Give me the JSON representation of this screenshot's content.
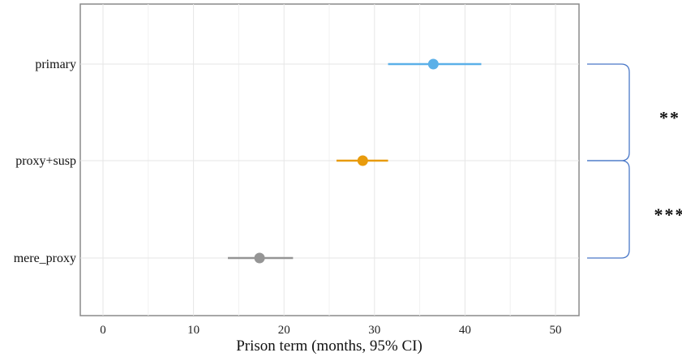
{
  "chart_data": {
    "type": "scatter",
    "xlabel": "Prison term (months, 95% CI)",
    "ylabel": "",
    "xlim": [
      -2,
      52.5
    ],
    "xticks": [
      0,
      10,
      20,
      30,
      40,
      50
    ],
    "grid": true,
    "legend": "none",
    "series": [
      {
        "category": "primary",
        "estimate": 36.5,
        "ci_low": 31.5,
        "ci_high": 41.8,
        "color": "#5BB0E8"
      },
      {
        "category": "proxy+susp",
        "estimate": 28.7,
        "ci_low": 25.8,
        "ci_high": 31.5,
        "color": "#E89B0C"
      },
      {
        "category": "mere_proxy",
        "estimate": 17.3,
        "ci_low": 13.8,
        "ci_high": 21.0,
        "color": "#959595"
      }
    ],
    "annotations": [
      {
        "from": "primary",
        "to": "proxy+susp",
        "label": "**"
      },
      {
        "from": "proxy+susp",
        "to": "mere_proxy",
        "label": "***"
      }
    ],
    "bracket_color": "#4A78C8"
  }
}
